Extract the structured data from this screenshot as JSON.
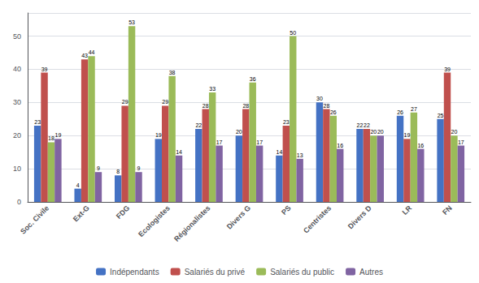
{
  "chart_data": {
    "type": "bar",
    "categories": [
      "Soc. Civile",
      "Ext-G",
      "FDG",
      "Ecologistes",
      "Régionalistes",
      "Divers G",
      "PS",
      "Centristes",
      "Divers D",
      "LR",
      "FN"
    ],
    "series": [
      {
        "name": "Indépendants",
        "color": "#4472C4",
        "values": [
          23,
          4,
          8,
          19,
          22,
          20,
          14,
          30,
          22,
          26,
          25
        ]
      },
      {
        "name": "Salariés du privé",
        "color": "#C0504D",
        "values": [
          39,
          43,
          29,
          29,
          28,
          28,
          23,
          28,
          22,
          19,
          39
        ]
      },
      {
        "name": "Salariés du public",
        "color": "#9BBB59",
        "values": [
          18,
          44,
          53,
          38,
          33,
          36,
          50,
          26,
          20,
          27,
          20
        ]
      },
      {
        "name": "Autres",
        "color": "#8064A2",
        "values": [
          19,
          9,
          9,
          14,
          17,
          17,
          13,
          16,
          20,
          16,
          17
        ]
      }
    ],
    "ylim": [
      0,
      57
    ],
    "yticks": [
      0,
      10,
      20,
      30,
      40,
      50
    ],
    "grid": true,
    "legend": "bottom",
    "data_labels": true
  }
}
